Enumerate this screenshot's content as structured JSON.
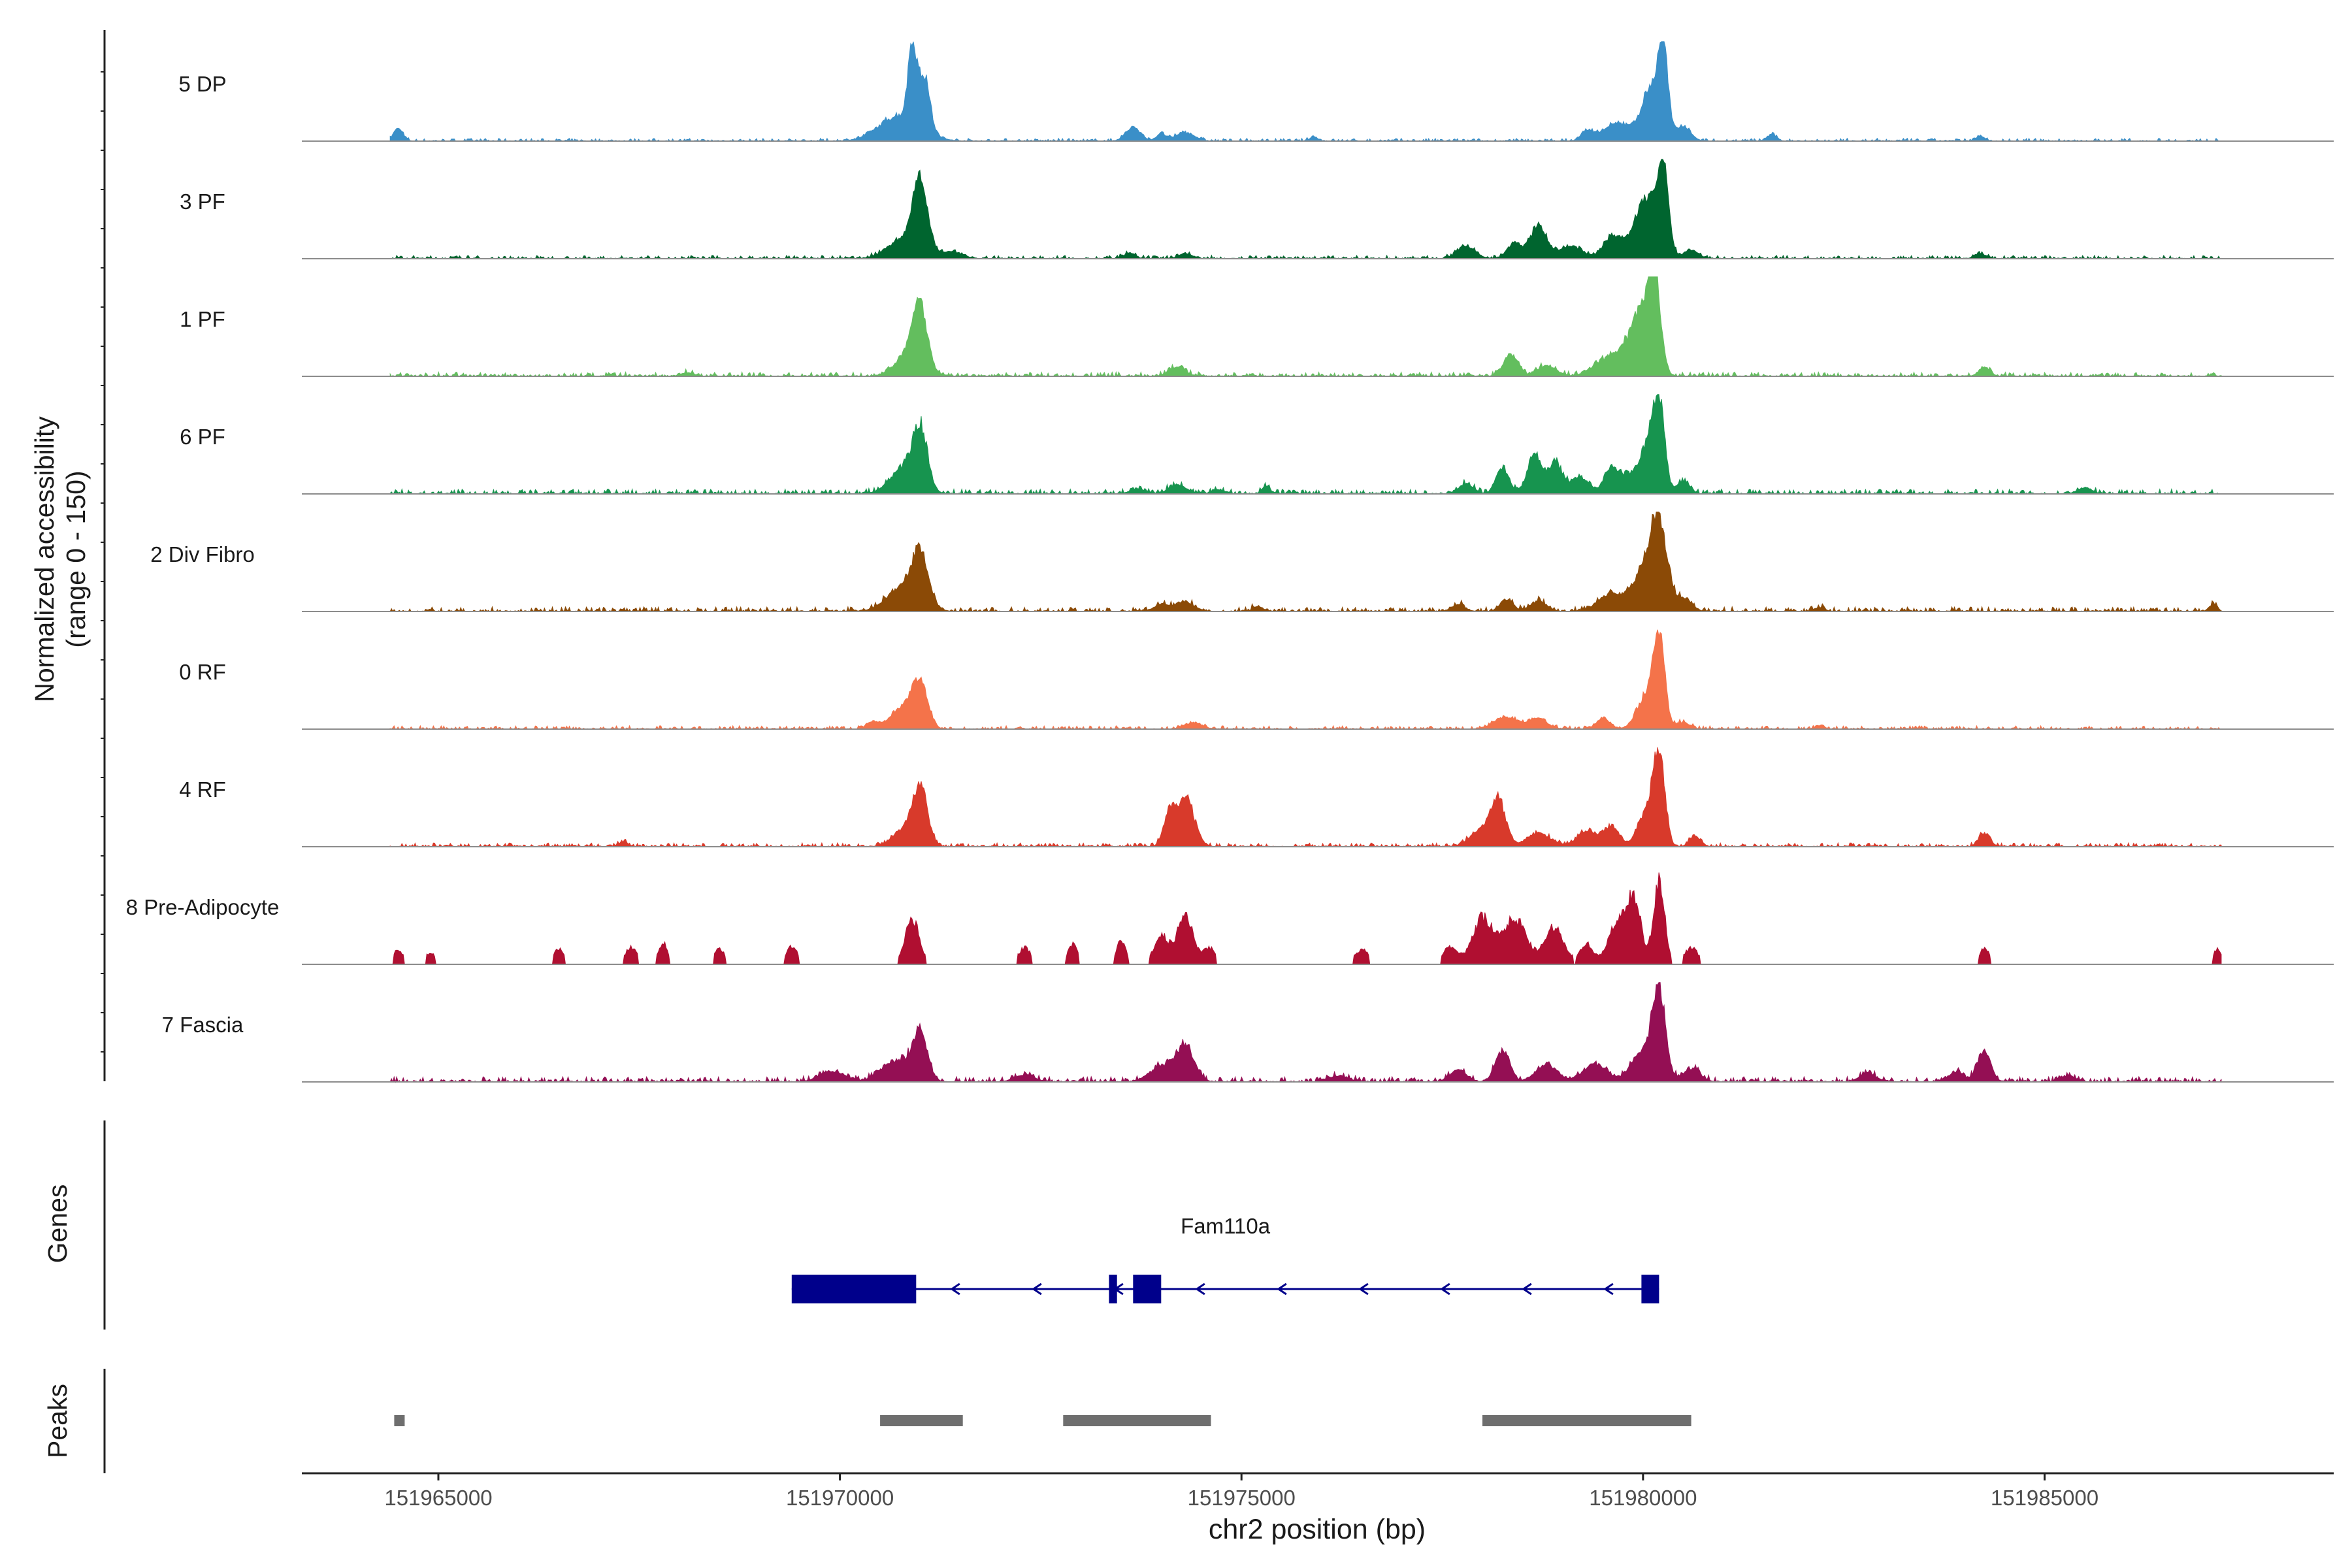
{
  "chart_data": {
    "type": "area",
    "title": "",
    "ylabel": "Normalized accessibility",
    "ylabel_range": "(range 0 - 150)",
    "y_range": [
      0,
      150
    ],
    "xlabel": "chr2 position (bp)",
    "xlim": [
      151963300,
      151988600
    ],
    "x_ticks": [
      151965000,
      151970000,
      151975000,
      151980000,
      151985000
    ],
    "tracks": [
      {
        "name": "5 DP",
        "color": "#3A8FC8",
        "sparse": false,
        "noise": 0.03,
        "peaks": [
          [
            151964500,
            60,
            0.14
          ],
          [
            151970900,
            50,
            0.92
          ],
          [
            151971050,
            70,
            0.62
          ],
          [
            151970750,
            250,
            0.3
          ],
          [
            151973650,
            90,
            0.16
          ],
          [
            151974000,
            60,
            0.08
          ],
          [
            151974300,
            110,
            0.1
          ],
          [
            151975900,
            50,
            0.05
          ],
          [
            151979300,
            70,
            0.1
          ],
          [
            151980250,
            60,
            1.0
          ],
          [
            151980100,
            110,
            0.58
          ],
          [
            151979700,
            200,
            0.2
          ],
          [
            151980500,
            90,
            0.18
          ],
          [
            151981600,
            60,
            0.07
          ],
          [
            151984200,
            60,
            0.05
          ]
        ]
      },
      {
        "name": "3 PF",
        "color": "#00652F",
        "sparse": false,
        "noise": 0.035,
        "peaks": [
          [
            151971000,
            90,
            0.85
          ],
          [
            151970800,
            200,
            0.22
          ],
          [
            151971400,
            120,
            0.08
          ],
          [
            151973600,
            70,
            0.06
          ],
          [
            151974300,
            80,
            0.06
          ],
          [
            151977800,
            110,
            0.14
          ],
          [
            151978400,
            90,
            0.18
          ],
          [
            151978700,
            100,
            0.38
          ],
          [
            151979100,
            150,
            0.14
          ],
          [
            151979600,
            100,
            0.2
          ],
          [
            151980250,
            70,
            0.95
          ],
          [
            151980050,
            120,
            0.55
          ],
          [
            151979900,
            200,
            0.2
          ],
          [
            151980600,
            90,
            0.1
          ],
          [
            151984200,
            70,
            0.05
          ]
        ]
      },
      {
        "name": "1 PF",
        "color": "#63BE5E",
        "sparse": false,
        "noise": 0.045,
        "peaks": [
          [
            151971000,
            90,
            0.7
          ],
          [
            151970850,
            160,
            0.25
          ],
          [
            151974200,
            100,
            0.11
          ],
          [
            151978350,
            90,
            0.25
          ],
          [
            151978800,
            120,
            0.12
          ],
          [
            151979500,
            150,
            0.15
          ],
          [
            151980150,
            70,
            0.97
          ],
          [
            151980000,
            120,
            0.55
          ],
          [
            151979850,
            180,
            0.3
          ],
          [
            151984250,
            70,
            0.1
          ],
          [
            151968100,
            80,
            0.04
          ]
        ]
      },
      {
        "name": "6 PF",
        "color": "#17944F",
        "sparse": false,
        "noise": 0.05,
        "peaks": [
          [
            151971000,
            90,
            0.65
          ],
          [
            151970800,
            170,
            0.3
          ],
          [
            151973700,
            90,
            0.06
          ],
          [
            151974200,
            110,
            0.1
          ],
          [
            151974700,
            70,
            0.05
          ],
          [
            151975300,
            50,
            0.08
          ],
          [
            151977800,
            90,
            0.12
          ],
          [
            151978250,
            80,
            0.3
          ],
          [
            151978650,
            90,
            0.45
          ],
          [
            151978900,
            80,
            0.35
          ],
          [
            151979200,
            130,
            0.18
          ],
          [
            151979600,
            80,
            0.3
          ],
          [
            151979800,
            90,
            0.2
          ],
          [
            151980200,
            70,
            1.0
          ],
          [
            151980050,
            100,
            0.55
          ],
          [
            151980500,
            80,
            0.15
          ],
          [
            151985500,
            90,
            0.07
          ]
        ]
      },
      {
        "name": "2 Div Fibro",
        "color": "#8B4A06",
        "sparse": false,
        "noise": 0.05,
        "peaks": [
          [
            151971000,
            100,
            0.55
          ],
          [
            151970800,
            200,
            0.28
          ],
          [
            151974000,
            90,
            0.08
          ],
          [
            151974300,
            120,
            0.1
          ],
          [
            151975200,
            60,
            0.06
          ],
          [
            151977700,
            80,
            0.08
          ],
          [
            151978300,
            80,
            0.14
          ],
          [
            151978700,
            100,
            0.12
          ],
          [
            151979600,
            160,
            0.2
          ],
          [
            151980200,
            100,
            1.0
          ],
          [
            151980000,
            130,
            0.45
          ],
          [
            151980500,
            100,
            0.15
          ],
          [
            151982200,
            60,
            0.05
          ],
          [
            151987100,
            50,
            0.08
          ]
        ]
      },
      {
        "name": "0 RF",
        "color": "#F4734A",
        "sparse": false,
        "noise": 0.035,
        "peaks": [
          [
            151971000,
            90,
            0.5
          ],
          [
            151970800,
            160,
            0.25
          ],
          [
            151970400,
            70,
            0.08
          ],
          [
            151974400,
            110,
            0.07
          ],
          [
            151978300,
            150,
            0.14
          ],
          [
            151978700,
            110,
            0.12
          ],
          [
            151979500,
            80,
            0.12
          ],
          [
            151980200,
            70,
            1.0
          ],
          [
            151980050,
            120,
            0.38
          ],
          [
            151980500,
            80,
            0.08
          ],
          [
            151982200,
            60,
            0.04
          ]
        ]
      },
      {
        "name": "4 RF",
        "color": "#D83A2B",
        "sparse": false,
        "noise": 0.04,
        "peaks": [
          [
            151971000,
            90,
            0.65
          ],
          [
            151970800,
            140,
            0.2
          ],
          [
            151974100,
            70,
            0.35
          ],
          [
            151974300,
            110,
            0.55
          ],
          [
            151978200,
            90,
            0.5
          ],
          [
            151978000,
            140,
            0.2
          ],
          [
            151978700,
            150,
            0.15
          ],
          [
            151979300,
            120,
            0.18
          ],
          [
            151979600,
            100,
            0.22
          ],
          [
            151980200,
            70,
            1.0
          ],
          [
            151980050,
            110,
            0.4
          ],
          [
            151980650,
            70,
            0.12
          ],
          [
            151984250,
            70,
            0.15
          ],
          [
            151967300,
            60,
            0.05
          ]
        ]
      },
      {
        "name": "8 Pre-Adipocyte",
        "color": "#B00F31",
        "sparse": true,
        "noise": 0.0,
        "peaks": [
          [
            151964500,
            60,
            0.18
          ],
          [
            151964900,
            60,
            0.15
          ],
          [
            151966500,
            70,
            0.18
          ],
          [
            151967400,
            80,
            0.2
          ],
          [
            151967800,
            60,
            0.25
          ],
          [
            151968500,
            70,
            0.18
          ],
          [
            151969400,
            70,
            0.22
          ],
          [
            151970900,
            90,
            0.55
          ],
          [
            151972300,
            80,
            0.2
          ],
          [
            151972900,
            60,
            0.25
          ],
          [
            151973500,
            60,
            0.28
          ],
          [
            151974000,
            90,
            0.35
          ],
          [
            151974300,
            100,
            0.6
          ],
          [
            151974600,
            70,
            0.2
          ],
          [
            151976500,
            90,
            0.18
          ],
          [
            151977600,
            100,
            0.2
          ],
          [
            151978000,
            120,
            0.55
          ],
          [
            151978400,
            150,
            0.55
          ],
          [
            151978900,
            120,
            0.45
          ],
          [
            151979300,
            80,
            0.25
          ],
          [
            151979700,
            120,
            0.55
          ],
          [
            151979900,
            80,
            0.7
          ],
          [
            151980200,
            70,
            1.0
          ],
          [
            151980600,
            90,
            0.2
          ],
          [
            151984250,
            60,
            0.2
          ],
          [
            151987150,
            50,
            0.18
          ]
        ]
      },
      {
        "name": "7 Fascia",
        "color": "#940F54",
        "sparse": false,
        "noise": 0.055,
        "peaks": [
          [
            151971000,
            90,
            0.55
          ],
          [
            151970700,
            180,
            0.25
          ],
          [
            151969900,
            150,
            0.12
          ],
          [
            151972300,
            120,
            0.08
          ],
          [
            151974300,
            110,
            0.4
          ],
          [
            151974000,
            140,
            0.18
          ],
          [
            151976200,
            120,
            0.07
          ],
          [
            151977700,
            100,
            0.14
          ],
          [
            151978250,
            90,
            0.35
          ],
          [
            151978800,
            130,
            0.2
          ],
          [
            151979400,
            150,
            0.2
          ],
          [
            151980200,
            80,
            1.0
          ],
          [
            151980000,
            140,
            0.35
          ],
          [
            151980600,
            110,
            0.15
          ],
          [
            151982800,
            100,
            0.1
          ],
          [
            151984250,
            80,
            0.35
          ],
          [
            151983900,
            110,
            0.1
          ],
          [
            151985300,
            90,
            0.07
          ]
        ]
      }
    ],
    "gene": {
      "name": "Fam110a",
      "color": "#00008B",
      "strand": "-",
      "span": [
        151969400,
        151980200
      ],
      "exons": [
        [
          151969400,
          151970950
        ],
        [
          151973350,
          151973450
        ],
        [
          151973650,
          151974000
        ],
        [
          151979980,
          151980200
        ]
      ]
    },
    "peaks_track": {
      "label": "Peaks",
      "color": "#6E6E6E",
      "regions": [
        [
          151964450,
          151964580
        ],
        [
          151970500,
          151971530
        ],
        [
          151972780,
          151974620
        ],
        [
          151978000,
          151980600
        ]
      ]
    },
    "genes_label": "Genes"
  }
}
